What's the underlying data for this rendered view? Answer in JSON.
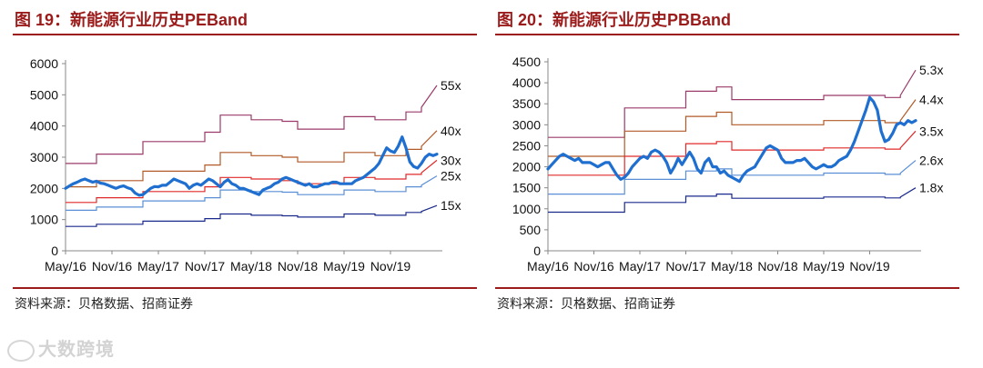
{
  "panels": [
    {
      "title": "图 19：新能源行业历史PEBand",
      "source": "资料来源：贝格数据、招商证券",
      "chart_data": {
        "type": "line",
        "x_tick_labels": [
          "May/16",
          "Nov/16",
          "May/17",
          "Nov/17",
          "May/18",
          "Nov/18",
          "May/19",
          "Nov/19"
        ],
        "yticks": [
          0,
          1000,
          2000,
          3000,
          4000,
          5000,
          6000
        ],
        "ylim": [
          0,
          6000
        ],
        "grid": false,
        "legend": "none",
        "main_series": {
          "color": "#1f6fd0",
          "x": [
            0,
            0.5,
            1,
            1.5,
            2,
            2.5,
            3,
            3.5,
            4,
            4.5,
            5,
            5.5,
            6,
            6.5,
            7,
            7.5,
            8,
            8.5,
            9,
            9.5,
            10,
            10.5,
            11,
            11.5,
            12,
            12.5,
            13,
            13.5,
            14,
            14.5,
            15,
            15.5,
            16,
            16.5,
            17,
            17.5,
            18,
            18.5,
            19,
            19.5,
            20,
            20.5,
            21,
            21.5,
            22,
            22.5,
            23,
            23.5,
            24,
            24.5,
            25,
            25.5,
            26,
            26.5,
            27,
            27.5,
            28,
            28.5,
            29,
            29.5,
            30,
            30.5,
            31,
            31.5,
            32,
            32.5,
            33,
            33.5,
            34,
            34.5,
            35,
            35.5,
            36,
            36.5,
            37,
            37.5,
            38,
            38.5,
            39,
            39.5,
            40,
            40.5,
            41,
            41.5,
            42,
            42.5,
            43,
            43.5,
            44,
            44.5,
            45,
            45.5,
            46,
            46.5,
            47,
            47.5,
            48
          ],
          "y": [
            2000,
            2080,
            2150,
            2200,
            2260,
            2300,
            2250,
            2200,
            2230,
            2170,
            2150,
            2100,
            2050,
            2000,
            2050,
            2080,
            2020,
            1980,
            1850,
            1780,
            1800,
            1900,
            2000,
            2060,
            2050,
            2100,
            2100,
            2200,
            2300,
            2250,
            2200,
            2150,
            2000,
            2100,
            2150,
            2100,
            2200,
            2300,
            2250,
            2150,
            2050,
            2200,
            2280,
            2150,
            2100,
            2000,
            2000,
            1950,
            1900,
            1850,
            1800,
            1950,
            2000,
            2050,
            2150,
            2200,
            2300,
            2350,
            2300,
            2250,
            2200,
            2150,
            2100,
            2150,
            2050,
            2050,
            2100,
            2150,
            2150,
            2200,
            2200,
            2150,
            2150,
            2150,
            2150,
            2250,
            2300,
            2350,
            2450,
            2550,
            2650,
            2800,
            3050,
            3300,
            3200,
            3150,
            3350,
            3650,
            3300,
            2850,
            2700,
            2650,
            2800,
            3000,
            3100,
            3050,
            3100
          ]
        },
        "band_series": [
          {
            "name": "55x",
            "color": "#9a3b6a",
            "x": [
              0,
              4,
              4,
              10,
              10,
              18,
              18,
              20,
              20,
              24,
              24,
              28,
              28,
              30,
              30,
              36,
              36,
              40,
              40,
              44,
              44,
              46,
              46,
              48
            ],
            "y": [
              2800,
              2800,
              3100,
              3100,
              3500,
              3500,
              3800,
              3800,
              4350,
              4350,
              4200,
              4200,
              4150,
              4150,
              3900,
              3900,
              4300,
              4300,
              4200,
              4200,
              4450,
              4450,
              4600,
              5300
            ]
          },
          {
            "name": "40x",
            "color": "#b05a28",
            "x": [
              0,
              4,
              4,
              10,
              10,
              18,
              18,
              20,
              20,
              24,
              24,
              28,
              28,
              30,
              30,
              36,
              36,
              40,
              40,
              44,
              44,
              46,
              46,
              48
            ],
            "y": [
              2050,
              2050,
              2250,
              2250,
              2550,
              2550,
              2750,
              2750,
              3150,
              3150,
              3050,
              3050,
              3000,
              3000,
              2850,
              2850,
              3150,
              3150,
              3050,
              3050,
              3250,
              3250,
              3350,
              3850
            ]
          },
          {
            "name": "30x",
            "color": "#e02a2a",
            "x": [
              0,
              4,
              4,
              10,
              10,
              18,
              18,
              20,
              20,
              24,
              24,
              28,
              28,
              30,
              30,
              36,
              36,
              40,
              40,
              44,
              44,
              46,
              46,
              48
            ],
            "y": [
              1550,
              1550,
              1700,
              1700,
              1900,
              1900,
              2050,
              2050,
              2350,
              2350,
              2300,
              2300,
              2250,
              2250,
              2150,
              2150,
              2350,
              2350,
              2300,
              2300,
              2450,
              2450,
              2500,
              2900
            ]
          },
          {
            "name": "25x",
            "color": "#5a8fd6",
            "x": [
              0,
              4,
              4,
              10,
              10,
              18,
              18,
              20,
              20,
              24,
              24,
              28,
              28,
              30,
              30,
              36,
              36,
              40,
              40,
              44,
              44,
              46,
              46,
              48
            ],
            "y": [
              1300,
              1300,
              1400,
              1400,
              1600,
              1600,
              1700,
              1700,
              1950,
              1950,
              1900,
              1900,
              1880,
              1880,
              1800,
              1800,
              1950,
              1950,
              1900,
              1900,
              2050,
              2050,
              2100,
              2400
            ]
          },
          {
            "name": "15x",
            "color": "#1a2a8c",
            "x": [
              0,
              4,
              4,
              10,
              10,
              18,
              18,
              20,
              20,
              24,
              24,
              28,
              28,
              30,
              30,
              36,
              36,
              40,
              40,
              44,
              44,
              46,
              46,
              48
            ],
            "y": [
              780,
              780,
              850,
              850,
              950,
              950,
              1030,
              1030,
              1180,
              1180,
              1140,
              1140,
              1120,
              1120,
              1080,
              1080,
              1180,
              1180,
              1140,
              1140,
              1230,
              1230,
              1260,
              1450
            ]
          }
        ]
      }
    },
    {
      "title": "图 20：新能源行业历史PBBand",
      "source": "资料来源：贝格数据、招商证券",
      "chart_data": {
        "type": "line",
        "x_tick_labels": [
          "May/16",
          "Nov/16",
          "May/17",
          "Nov/17",
          "May/18",
          "Nov/18",
          "May/19",
          "Nov/19"
        ],
        "yticks": [
          0,
          500,
          1000,
          1500,
          2000,
          2500,
          3000,
          3500,
          4000,
          4500
        ],
        "ylim": [
          0,
          4500
        ],
        "grid": false,
        "legend": "none",
        "main_series": {
          "color": "#1f6fd0",
          "x": [
            0,
            0.5,
            1,
            1.5,
            2,
            2.5,
            3,
            3.5,
            4,
            4.5,
            5,
            5.5,
            6,
            6.5,
            7,
            7.5,
            8,
            8.5,
            9,
            9.5,
            10,
            10.5,
            11,
            11.5,
            12,
            12.5,
            13,
            13.5,
            14,
            14.5,
            15,
            15.5,
            16,
            16.5,
            17,
            17.5,
            18,
            18.5,
            19,
            19.5,
            20,
            20.5,
            21,
            21.5,
            22,
            22.5,
            23,
            23.5,
            24,
            24.5,
            25,
            25.5,
            26,
            26.5,
            27,
            27.5,
            28,
            28.5,
            29,
            29.5,
            30,
            30.5,
            31,
            31.5,
            32,
            32.5,
            33,
            33.5,
            34,
            34.5,
            35,
            35.5,
            36,
            36.5,
            37,
            37.5,
            38,
            38.5,
            39,
            39.5,
            40,
            40.5,
            41,
            41.5,
            42,
            42.5,
            43,
            43.5,
            44,
            44.5,
            45,
            45.5,
            46,
            46.5,
            47,
            47.5,
            48
          ],
          "y": [
            1950,
            2050,
            2150,
            2250,
            2300,
            2250,
            2200,
            2150,
            2200,
            2100,
            2100,
            2100,
            2050,
            2000,
            2050,
            2100,
            2100,
            1950,
            1800,
            1700,
            1750,
            1850,
            2000,
            2100,
            2200,
            2250,
            2200,
            2350,
            2400,
            2350,
            2250,
            2100,
            1850,
            2000,
            2200,
            2050,
            2200,
            2350,
            2200,
            1950,
            1850,
            2100,
            2200,
            2000,
            2000,
            1850,
            1900,
            1800,
            1750,
            1700,
            1650,
            1800,
            1900,
            1950,
            2000,
            2150,
            2300,
            2450,
            2500,
            2450,
            2400,
            2200,
            2100,
            2100,
            2100,
            2150,
            2150,
            2200,
            2100,
            2000,
            1950,
            2000,
            2050,
            2000,
            2000,
            2050,
            2150,
            2200,
            2250,
            2400,
            2600,
            2850,
            3100,
            3350,
            3650,
            3550,
            3350,
            2850,
            2600,
            2650,
            2800,
            3000,
            3050,
            3000,
            3100,
            3050,
            3100
          ]
        },
        "band_series": [
          {
            "name": "5.3x",
            "color": "#9a3b6a",
            "x": [
              0,
              10,
              10,
              18,
              18,
              22,
              22,
              24,
              24,
              36,
              36,
              44,
              44,
              46,
              46,
              48
            ],
            "y": [
              2700,
              2700,
              3400,
              3400,
              3800,
              3800,
              3900,
              3900,
              3600,
              3600,
              3700,
              3700,
              3650,
              3650,
              3700,
              4300
            ]
          },
          {
            "name": "4.4x",
            "color": "#b05a28",
            "x": [
              0,
              10,
              10,
              18,
              18,
              22,
              22,
              24,
              24,
              36,
              36,
              44,
              44,
              46,
              46,
              48
            ],
            "y": [
              2250,
              2250,
              2850,
              2850,
              3200,
              3200,
              3300,
              3300,
              3000,
              3000,
              3100,
              3100,
              3050,
              3050,
              3100,
              3600
            ]
          },
          {
            "name": "3.5x",
            "color": "#e02a2a",
            "x": [
              0,
              10,
              10,
              18,
              18,
              22,
              22,
              24,
              24,
              36,
              36,
              44,
              44,
              46,
              46,
              48
            ],
            "y": [
              1800,
              1800,
              2250,
              2250,
              2550,
              2550,
              2600,
              2600,
              2400,
              2400,
              2450,
              2450,
              2420,
              2420,
              2450,
              2850
            ]
          },
          {
            "name": "2.6x",
            "color": "#5a8fd6",
            "x": [
              0,
              10,
              10,
              18,
              18,
              22,
              22,
              24,
              24,
              36,
              36,
              44,
              44,
              46,
              46,
              48
            ],
            "y": [
              1350,
              1350,
              1700,
              1700,
              1900,
              1900,
              1950,
              1950,
              1800,
              1800,
              1850,
              1850,
              1820,
              1820,
              1850,
              2150
            ]
          },
          {
            "name": "1.8x",
            "color": "#1a2a8c",
            "x": [
              0,
              10,
              10,
              18,
              18,
              22,
              22,
              24,
              24,
              36,
              36,
              44,
              44,
              46,
              46,
              48
            ],
            "y": [
              920,
              920,
              1150,
              1150,
              1300,
              1300,
              1350,
              1350,
              1250,
              1250,
              1280,
              1280,
              1260,
              1260,
              1280,
              1500
            ]
          }
        ]
      }
    }
  ],
  "watermark": "大数跨境"
}
